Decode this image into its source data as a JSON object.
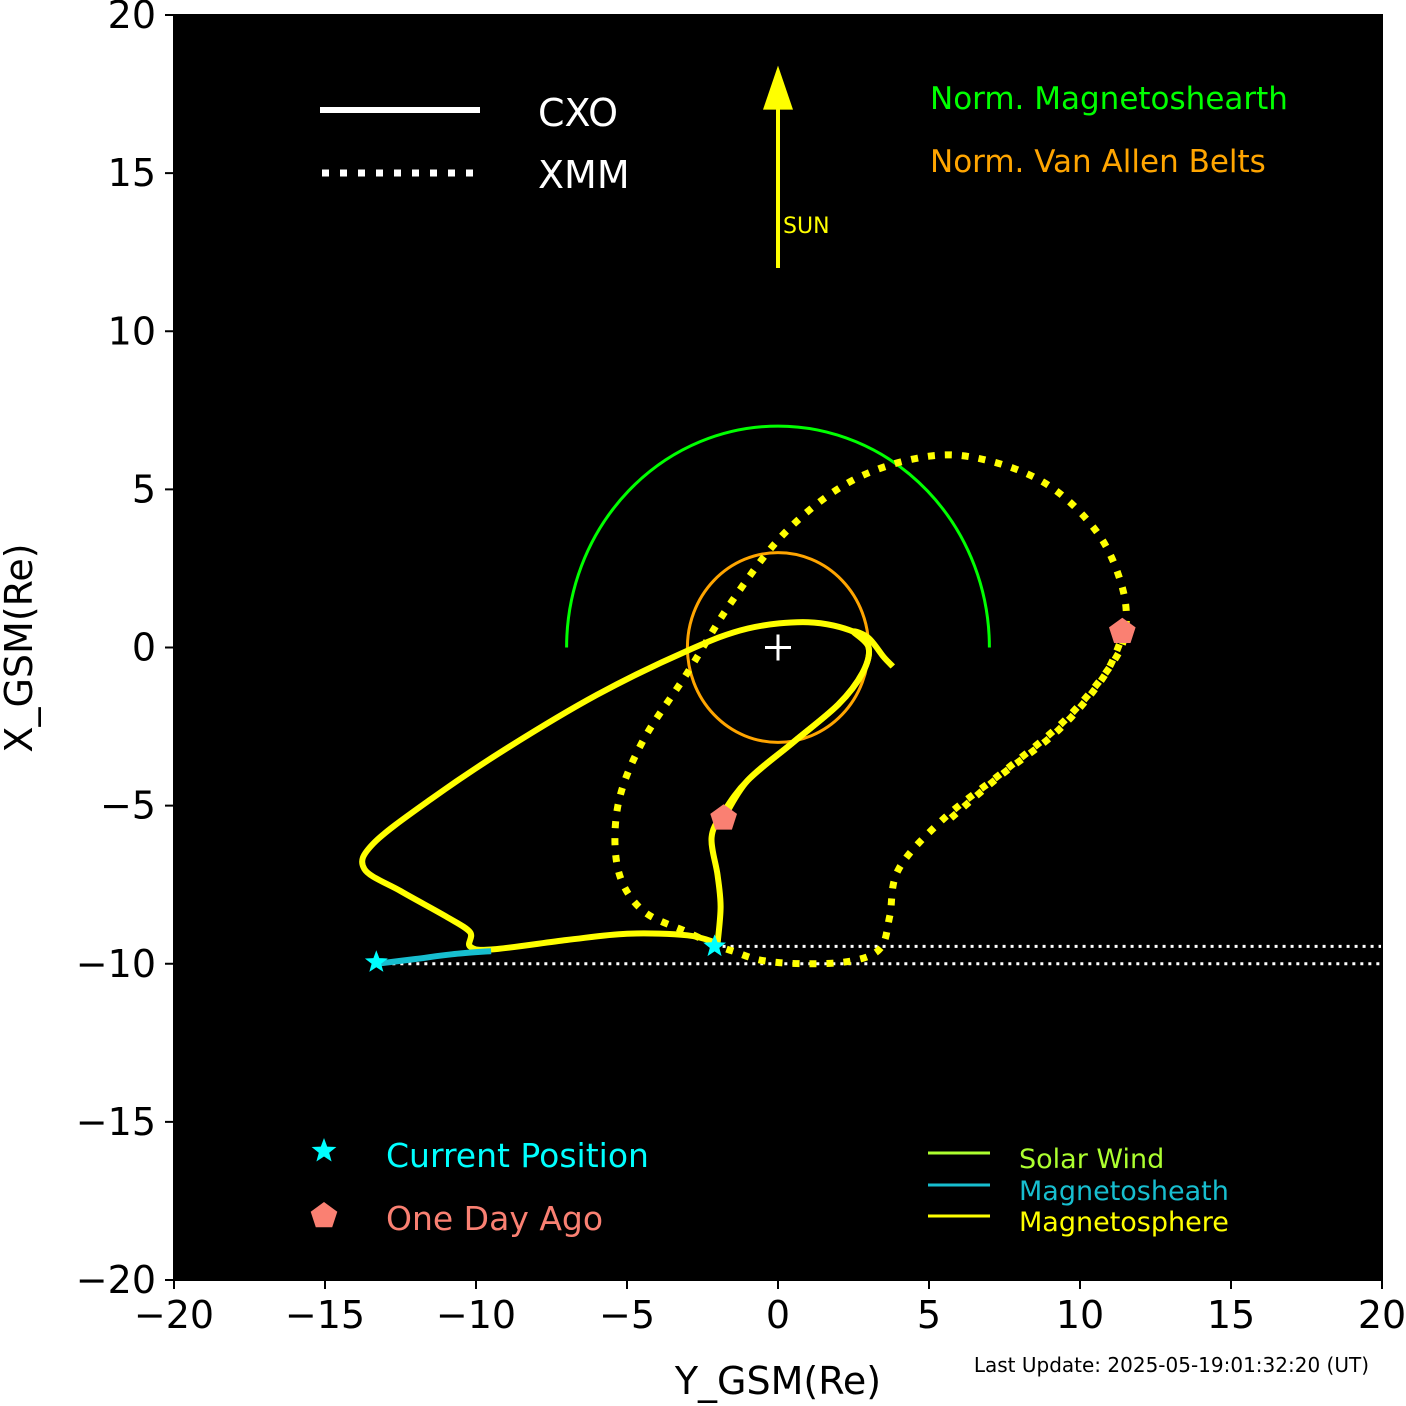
{
  "colors": {
    "background": "#000000",
    "axis": "#000000",
    "orbit": "#ffff00",
    "magnetosheath": "#17becf",
    "solar_wind": "#adff2f",
    "norm_magnetosheath": "#00ff00",
    "van_allen": "#ffa500",
    "current": "#00ffff",
    "day_ago": "#fa8072",
    "earth": "#ffffff",
    "sun": "#ffff00"
  },
  "chart_data": {
    "type": "line",
    "xlabel": "Y_GSM(Re)",
    "ylabel": "X_GSM(Re)",
    "xlim": [
      -20,
      20
    ],
    "ylim": [
      -20,
      20
    ],
    "xticks": [
      -20,
      -15,
      -10,
      -5,
      0,
      5,
      10,
      15,
      20
    ],
    "yticks": [
      -20,
      -15,
      -10,
      -5,
      0,
      5,
      10,
      15,
      20
    ],
    "xtick_labels": [
      "−20",
      "−15",
      "−10",
      "−5",
      "0",
      "5",
      "10",
      "15",
      "20"
    ],
    "ytick_labels": [
      "−20",
      "−15",
      "−10",
      "−5",
      "0",
      "5",
      "10",
      "15",
      "20"
    ],
    "grid": false,
    "footer": "Last Update: 2025-05-19:01:32:20 (UT)",
    "series": [
      {
        "name": "CXO",
        "style": "solid",
        "region": "Magnetosphere",
        "points": [
          [
            -2.0,
            -9.35
          ],
          [
            -3.0,
            -9.1
          ],
          [
            -5.0,
            -9.05
          ],
          [
            -7.0,
            -9.25
          ],
          [
            -9.5,
            -9.55
          ],
          [
            -10.2,
            -9.45
          ],
          [
            -10.2,
            -9.0
          ],
          [
            -11.0,
            -8.5
          ],
          [
            -12.5,
            -7.7
          ],
          [
            -13.7,
            -7.0
          ],
          [
            -13.4,
            -6.2
          ],
          [
            -11.5,
            -4.8
          ],
          [
            -9.0,
            -3.2
          ],
          [
            -6.0,
            -1.5
          ],
          [
            -3.0,
            -0.1
          ],
          [
            -1.0,
            0.6
          ],
          [
            1.0,
            0.8
          ],
          [
            2.5,
            0.5
          ],
          [
            3.0,
            0.0
          ],
          [
            2.8,
            -0.8
          ],
          [
            2.0,
            -1.8
          ],
          [
            0.5,
            -3.0
          ],
          [
            -1.0,
            -4.2
          ],
          [
            -1.8,
            -5.2
          ],
          [
            -2.2,
            -6.0
          ],
          [
            -2.0,
            -7.2
          ],
          [
            -1.9,
            -8.2
          ],
          [
            -2.0,
            -9.35
          ]
        ]
      },
      {
        "name": "CXO",
        "style": "solid",
        "region": "Magnetosphere",
        "points": [
          [
            -1.8,
            -5.4
          ],
          [
            -1.0,
            -4.2
          ],
          [
            0.5,
            -3.0
          ],
          [
            2.0,
            -1.8
          ],
          [
            2.8,
            -0.8
          ],
          [
            3.0,
            0.0
          ],
          [
            2.5,
            0.5
          ],
          [
            3.0,
            0.3
          ],
          [
            3.5,
            -0.3
          ],
          [
            3.8,
            -0.6
          ]
        ]
      },
      {
        "name": "CXO",
        "style": "solid",
        "region": "Magnetosheath",
        "points": [
          [
            -13.3,
            -10.0
          ],
          [
            -12.0,
            -9.85
          ],
          [
            -10.8,
            -9.7
          ],
          [
            -9.5,
            -9.6
          ]
        ]
      },
      {
        "name": "XMM",
        "style": "dotted",
        "region": "Magnetosphere",
        "points": [
          [
            -2.1,
            -9.4
          ],
          [
            -3.0,
            -9.0
          ],
          [
            -4.5,
            -8.3
          ],
          [
            -5.3,
            -7.0
          ],
          [
            -5.3,
            -5.0
          ],
          [
            -4.5,
            -3.0
          ],
          [
            -3.0,
            -0.8
          ],
          [
            -1.5,
            1.5
          ],
          [
            0.3,
            3.7
          ],
          [
            2.5,
            5.3
          ],
          [
            5.0,
            6.05
          ],
          [
            7.0,
            5.9
          ],
          [
            9.0,
            5.1
          ],
          [
            10.6,
            3.6
          ],
          [
            11.4,
            1.9
          ],
          [
            11.5,
            0.5
          ],
          [
            11.0,
            -0.6
          ],
          [
            9.5,
            -2.3
          ],
          [
            7.5,
            -3.9
          ],
          [
            5.5,
            -5.4
          ],
          [
            4.0,
            -7.0
          ],
          [
            3.7,
            -8.5
          ],
          [
            3.4,
            -9.5
          ],
          [
            2.5,
            -9.9
          ],
          [
            1.0,
            -10.0
          ],
          [
            -0.5,
            -9.9
          ],
          [
            -1.5,
            -9.6
          ],
          [
            -2.1,
            -9.4
          ]
        ]
      },
      {
        "name": "XMM",
        "style": "dotted",
        "region": "Magnetosphere",
        "points": [
          [
            11.5,
            0.6
          ],
          [
            10.8,
            -0.9
          ],
          [
            9.3,
            -2.6
          ],
          [
            7.3,
            -4.1
          ],
          [
            5.6,
            -5.5
          ]
        ]
      }
    ],
    "sun_line_y": -9.45,
    "tail_lines": [
      [
        -13.3,
        -10.0
      ],
      [
        -2.1,
        -9.45
      ]
    ],
    "current_position": [
      [
        -13.3,
        -9.95
      ],
      [
        -2.1,
        -9.45
      ]
    ],
    "one_day_ago": [
      [
        -1.8,
        -5.4
      ],
      [
        11.4,
        0.5
      ]
    ],
    "norm_magnetosheath_radius": 7,
    "van_allen_radius": 3,
    "sun_arrow": {
      "from": 12,
      "to": 18.4,
      "label": "SUN"
    },
    "legend_sats": [
      {
        "label": "CXO",
        "style": "solid"
      },
      {
        "label": "XMM",
        "style": "dotted"
      }
    ],
    "legend_boundaries": [
      {
        "label": "Norm. Magnetoshearth",
        "color_key": "norm_magnetosheath"
      },
      {
        "label": "Norm. Van Allen Belts",
        "color_key": "van_allen"
      }
    ],
    "legend_markers": [
      {
        "label": "Current Position",
        "marker": "star",
        "color_key": "current"
      },
      {
        "label": "One Day Ago",
        "marker": "pentagon",
        "color_key": "day_ago"
      }
    ],
    "legend_regions": [
      {
        "label": "Solar Wind",
        "color_key": "solar_wind"
      },
      {
        "label": "Magnetosheath",
        "color_key": "magnetosheath"
      },
      {
        "label": "Magnetosphere",
        "color_key": "orbit"
      }
    ]
  }
}
